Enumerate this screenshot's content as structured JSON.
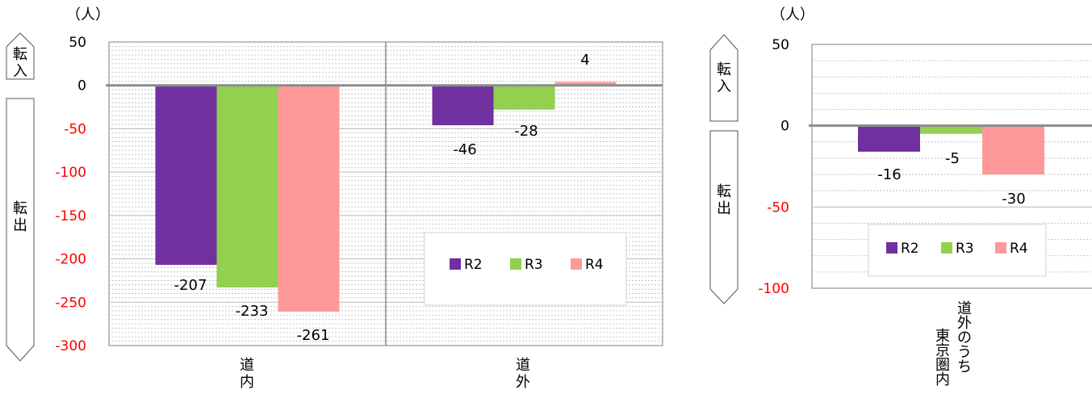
{
  "chart_data": [
    {
      "type": "bar",
      "unit_label": "（人）",
      "categories": [
        "道内",
        "道外"
      ],
      "series": [
        {
          "name": "R2",
          "values": [
            -207,
            -46
          ]
        },
        {
          "name": "R3",
          "values": [
            -233,
            -28
          ]
        },
        {
          "name": "R4",
          "values": [
            -261,
            4
          ]
        }
      ],
      "data_labels": [
        [
          "-207",
          "-46"
        ],
        [
          "-233",
          "-28"
        ],
        [
          "-261",
          "4"
        ]
      ],
      "ylim": [
        -300,
        50
      ],
      "yticks": [
        50,
        0,
        -50,
        -100,
        -150,
        -200,
        -250,
        -300
      ],
      "ytick_labels": [
        "50",
        "0",
        "-50",
        "-100",
        "-150",
        "-200",
        "-250",
        "-300"
      ],
      "side_labels": {
        "in": "転入",
        "out": "転出"
      },
      "legend": {
        "entries": [
          "R2",
          "R3",
          "R4"
        ],
        "placement": "bottom-right"
      },
      "grid": true
    },
    {
      "type": "bar",
      "unit_label": "（人）",
      "categories": [
        "道外のうち東京圏内"
      ],
      "category_lines": [
        "道外のうち",
        "東京圏内"
      ],
      "series": [
        {
          "name": "R2",
          "values": [
            -16
          ]
        },
        {
          "name": "R3",
          "values": [
            -5
          ]
        },
        {
          "name": "R4",
          "values": [
            -30
          ]
        }
      ],
      "data_labels": [
        [
          "-16"
        ],
        [
          "-5"
        ],
        [
          "-30"
        ]
      ],
      "ylim": [
        -100,
        50
      ],
      "yticks": [
        50,
        0,
        -50,
        -100
      ],
      "ytick_labels": [
        "50",
        "0",
        "-50",
        "-100"
      ],
      "side_labels": {
        "in": "転入",
        "out": "転出"
      },
      "legend": {
        "entries": [
          "R2",
          "R3",
          "R4"
        ],
        "placement": "bottom-center"
      },
      "grid": true
    }
  ],
  "colors": {
    "R2": "#7030a0",
    "R3": "#92d050",
    "R4": "#ff9999",
    "negative_tick": "#ff0000",
    "positive_tick": "#000000",
    "grid": "#b8b8b8",
    "zero_line": "#8c8c8c"
  }
}
